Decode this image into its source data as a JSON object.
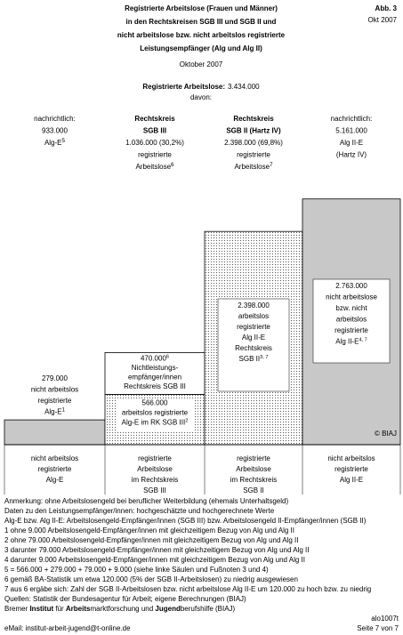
{
  "header": {
    "title": [
      "Registrierte Arbeitslose (Frauen und Männer)",
      "in den Rechtskreisen SGB III und SGB II und",
      "nicht arbeitslose bzw. nicht arbeitslos registrierte",
      "Leistungsempfänger (Alg und Alg II)"
    ],
    "figure": "Abb. 3",
    "date": "Okt 2007",
    "subtitle": "Oktober 2007",
    "total_label": "Registrierte Arbeitslose:",
    "total": "3.434.000",
    "split": "davon:"
  },
  "columns": [
    {
      "lines": [
        "nachrichtlich:",
        "933.000",
        {
          "text": "Alg-E",
          "sup": "5"
        }
      ],
      "bold": 0
    },
    {
      "lines": [
        "Rechtskreis",
        "SGB III",
        "1.036.000 (30,2%)",
        "registrierte",
        {
          "text": "Arbeitslose",
          "sup": "6"
        }
      ],
      "bold": 2
    },
    {
      "lines": [
        "Rechtskreis",
        "SGB II (Hartz IV)",
        "2.398.000 (69,8%)",
        "registrierte",
        {
          "text": "Arbeitslose",
          "sup": "7"
        }
      ],
      "bold": 2
    },
    {
      "lines": [
        "nachrichtlich:",
        "5.161.000",
        "Alg II-E",
        "(Hartz IV)"
      ],
      "bold": 0
    }
  ],
  "bars": [
    {
      "value": 279000,
      "lines": [
        "279.000",
        "nicht arbeitslos",
        "registrierte",
        {
          "text": "Alg-E",
          "sup": "1"
        }
      ]
    },
    {
      "value": 566000,
      "lines": [
        "566.000",
        "arbeitslos registrierte",
        {
          "text": "Alg-E im RK SGB III",
          "sup": "2"
        }
      ]
    },
    {
      "value": 470000,
      "lines": [
        {
          "text": "470.000",
          "sup": "6"
        },
        "Nichtleistungs-",
        "empfänger/innen",
        "Rechtskreis SGB III"
      ]
    },
    {
      "value": 2398000,
      "lines": [
        "2.398.000",
        "arbeitslos",
        "registrierte",
        "Alg II-E",
        "Rechtskreis",
        {
          "text": "SGB II",
          "sup": "3, 7"
        }
      ]
    },
    {
      "value": 2763000,
      "lines": [
        "2.763.000",
        "nicht arbeitslose",
        "bzw. nicht",
        "arbeitslos",
        "registrierte",
        {
          "text": "Alg II-E",
          "sup": "4, 7"
        }
      ]
    }
  ],
  "copyright": "© BIAJ",
  "bottom_labels": [
    [
      "nicht arbeitslos",
      "registrierte",
      "Alg-E"
    ],
    [
      "registrierte",
      "Arbeitslose",
      "im Rechtskreis",
      "SGB III"
    ],
    [
      "registrierte",
      "Arbeitslose",
      "im Rechtskreis",
      "SGB II"
    ],
    [
      "nicht arbeitslos",
      "registrierte",
      "Alg II-E"
    ]
  ],
  "notes": [
    "Anmerkung: ohne Arbeitslosengeld bei beruflicher Weiterbildung (ehemals Unterhaltsgeld)",
    "Daten zu den Leistungsempfänger/innen: hochgeschätzte und hochgerechnete Werte",
    "Alg-E bzw. Alg II-E: Arbeitslosengeld-Empfänger/innen (SGB III) bzw. Arbeitslosengeld II-Empfänger/innen (SGB II)",
    "1 ohne 9.000 Arbeitslosengeld-Empfänger/innen mit gleichzeitigem Bezug von Alg und Alg II",
    "2 ohne 79.000 Arbeitslosengeld-Empfänger/innen mit gleichzeitigem Bezug von Alg und Alg II",
    "3 darunter 79.000 Arbeitslosengeld-Empfänger/innen mit gleichzeitigem Bezug von Alg und Alg II",
    "4 darunter 9.000 Arbeitslosengeld-Empfänger/innen mit gleichzeitigem Bezug von Alg und Alg II",
    "5 = 566.000 + 279.000 + 79.000 + 9.000 (siehe linke Säulen und Fußnoten 3 und 4)",
    "6 gemäß BA-Statistik um etwa 120.000 (5% der SGB II-Arbeitslosen) zu niedrig ausgewiesen",
    "7 aus 6 ergäbe sich: Zahl der SGB II-Arbeitslosen bzw. nicht arbeitslose Alg II-E um 120.000 zu hoch bzw. zu niedrig",
    "Quellen: Statistik der Bundesagentur für Arbeit; eigene Berechnungen (BIAJ)"
  ],
  "institute": [
    "Bremer ",
    "Institut",
    " für ",
    "Arbeits",
    "marktforschung und ",
    "Jugend",
    "berufshilfe (BIAJ)"
  ],
  "email": "eMail: institut-arbeit-jugend@t-online.de",
  "footer": [
    "alo1007t",
    "Seite 7 von 7"
  ]
}
